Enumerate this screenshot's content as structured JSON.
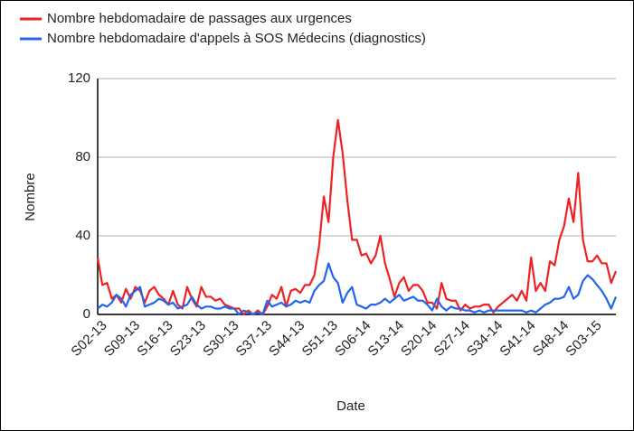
{
  "chart_data": {
    "type": "line",
    "xlabel": "Date",
    "ylabel": "Nombre",
    "categories": [
      "S02-13",
      null,
      null,
      null,
      null,
      null,
      null,
      "S09-13",
      null,
      null,
      null,
      null,
      null,
      null,
      "S16-13",
      null,
      null,
      null,
      null,
      null,
      null,
      "S23-13",
      null,
      null,
      null,
      null,
      null,
      null,
      "S30-13",
      null,
      null,
      null,
      null,
      null,
      null,
      "S37-13",
      null,
      null,
      null,
      null,
      null,
      null,
      "S44-13",
      null,
      null,
      null,
      null,
      null,
      null,
      "S51-13",
      null,
      null,
      null,
      null,
      null,
      null,
      "S06-14",
      null,
      null,
      null,
      null,
      null,
      null,
      "S13-14",
      null,
      null,
      null,
      null,
      null,
      null,
      "S20-14",
      null,
      null,
      null,
      null,
      null,
      null,
      "S27-14",
      null,
      null,
      null,
      null,
      null,
      null,
      "S34-14",
      null,
      null,
      null,
      null,
      null,
      null,
      "S41-14",
      null,
      null,
      null,
      null,
      null,
      null,
      "S48-14",
      null,
      null,
      null,
      null,
      null,
      null,
      "S03-15",
      null,
      null,
      null,
      null,
      null
    ],
    "series": [
      {
        "name": "Nombre hebdomadaire de passages aux urgences",
        "color": "#ee2222",
        "values": [
          29,
          15,
          16,
          8,
          10,
          6,
          13,
          8,
          14,
          12,
          6,
          12,
          14,
          10,
          8,
          5,
          12,
          5,
          3,
          14,
          8,
          4,
          14,
          9,
          9,
          7,
          8,
          5,
          4,
          3,
          3,
          0,
          2,
          0,
          2,
          0,
          4,
          10,
          8,
          14,
          4,
          12,
          13,
          11,
          15,
          15,
          20,
          35,
          60,
          47,
          80,
          99,
          82,
          58,
          38,
          38,
          30,
          31,
          26,
          30,
          40,
          26,
          18,
          9,
          16,
          19,
          12,
          15,
          15,
          12,
          6,
          6,
          3,
          16,
          8,
          7,
          7,
          2,
          5,
          3,
          4,
          4,
          5,
          5,
          1,
          4,
          6,
          8,
          10,
          7,
          12,
          7,
          29,
          12,
          16,
          12,
          27,
          25,
          38,
          45,
          59,
          47,
          72,
          38,
          27,
          27,
          30,
          26,
          26,
          16,
          22
        ]
      },
      {
        "name": "Nombre hebdomadaire d'appels à SOS Médecins (diagnostics)",
        "color": "#2266ee",
        "values": [
          3,
          5,
          4,
          6,
          10,
          8,
          4,
          10,
          12,
          14,
          4,
          5,
          6,
          8,
          7,
          5,
          6,
          3,
          4,
          5,
          9,
          5,
          3,
          4,
          4,
          3,
          3,
          4,
          3,
          3,
          0,
          2,
          1,
          0,
          1,
          0,
          7,
          4,
          5,
          6,
          4,
          5,
          7,
          6,
          7,
          6,
          12,
          15,
          17,
          26,
          19,
          16,
          6,
          11,
          14,
          5,
          4,
          3,
          5,
          5,
          6,
          8,
          6,
          8,
          10,
          7,
          8,
          9,
          7,
          7,
          5,
          2,
          8,
          4,
          2,
          4,
          3,
          3,
          2,
          2,
          1,
          2,
          1,
          2,
          2,
          2,
          2,
          2,
          2,
          2,
          2,
          1,
          2,
          1,
          3,
          5,
          6,
          8,
          8,
          9,
          14,
          8,
          10,
          17,
          20,
          18,
          15,
          12,
          8,
          3,
          9
        ]
      }
    ],
    "ylim": [
      0,
      120
    ],
    "yticks": [
      0,
      40,
      80,
      120
    ],
    "grid": true,
    "legend": "top-left"
  }
}
